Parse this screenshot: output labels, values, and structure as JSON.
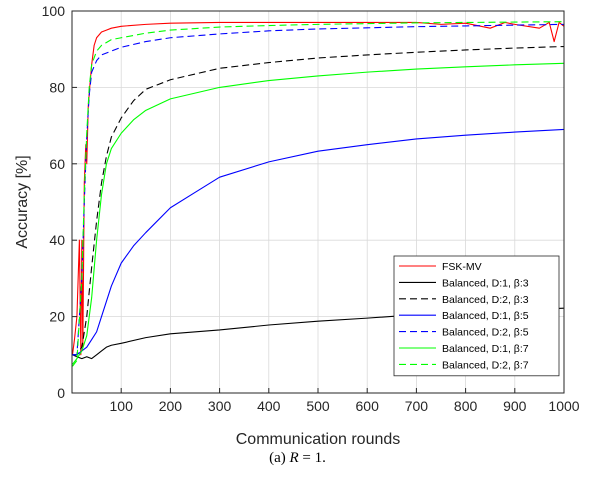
{
  "chart_data": {
    "type": "line",
    "xlabel": "Communication rounds",
    "ylabel": "Accuracy [%]",
    "xlim": [
      0,
      1000
    ],
    "ylim": [
      0,
      100
    ],
    "xticks": [
      100,
      200,
      300,
      400,
      500,
      600,
      700,
      800,
      900,
      1000
    ],
    "yticks": [
      0,
      20,
      40,
      60,
      80,
      100
    ],
    "grid": true,
    "legend_position": "bottom-right",
    "series": [
      {
        "name": "FSK-MV",
        "color": "#ff0000",
        "dash": "solid",
        "x": [
          1,
          5,
          10,
          15,
          18,
          20,
          22,
          25,
          28,
          30,
          33,
          36,
          40,
          45,
          50,
          60,
          70,
          80,
          100,
          150,
          200,
          300,
          400,
          500,
          600,
          700,
          750,
          800,
          850,
          880,
          900,
          950,
          970,
          980,
          990,
          1000
        ],
        "y": [
          10,
          14,
          20,
          40,
          10,
          40,
          12,
          55,
          65,
          60,
          75,
          80,
          86,
          91,
          93,
          94.5,
          95,
          95.5,
          96,
          96.5,
          96.8,
          97,
          97,
          97,
          97,
          97,
          96.5,
          96.8,
          95.5,
          97,
          96.5,
          95.5,
          97,
          92,
          97,
          96
        ]
      },
      {
        "name": "Balanced, D:1, β:3",
        "color": "#000000",
        "dash": "solid",
        "x": [
          1,
          10,
          20,
          30,
          40,
          50,
          60,
          70,
          80,
          100,
          150,
          200,
          300,
          400,
          500,
          600,
          700,
          800,
          900,
          1000
        ],
        "y": [
          10,
          9.5,
          9,
          9.5,
          9,
          10,
          11,
          12,
          12.5,
          13,
          14.5,
          15.5,
          16.5,
          17.8,
          18.8,
          19.6,
          20.5,
          21.1,
          21.7,
          22.2
        ]
      },
      {
        "name": "Balanced, D:2, β:3",
        "color": "#000000",
        "dash": "dashed",
        "x": [
          1,
          10,
          20,
          30,
          40,
          50,
          60,
          70,
          80,
          100,
          125,
          150,
          200,
          300,
          400,
          500,
          600,
          700,
          800,
          900,
          1000
        ],
        "y": [
          10,
          10,
          12,
          20,
          33,
          45,
          55,
          62,
          67,
          72,
          76.5,
          79.5,
          82,
          85,
          86.5,
          87.7,
          88.5,
          89.2,
          89.8,
          90.3,
          90.7
        ]
      },
      {
        "name": "Balanced, D:1, β:5",
        "color": "#0000ff",
        "dash": "solid",
        "x": [
          1,
          10,
          20,
          30,
          40,
          50,
          60,
          70,
          80,
          100,
          125,
          150,
          200,
          250,
          300,
          400,
          500,
          600,
          700,
          800,
          900,
          1000
        ],
        "y": [
          10,
          10,
          11,
          12,
          14,
          16,
          20,
          24,
          28,
          34,
          38.5,
          42,
          48.5,
          52.5,
          56.5,
          60.5,
          63.3,
          65,
          66.5,
          67.5,
          68.3,
          69
        ]
      },
      {
        "name": "Balanced, D:2, β:5",
        "color": "#0000ff",
        "dash": "dashed",
        "x": [
          1,
          10,
          20,
          25,
          30,
          35,
          40,
          50,
          60,
          80,
          100,
          150,
          200,
          300,
          400,
          500,
          600,
          700,
          800,
          900,
          1000
        ],
        "y": [
          10,
          10,
          30,
          50,
          67,
          78,
          84,
          87,
          88.5,
          89.5,
          90.5,
          92,
          93,
          94,
          94.8,
          95.3,
          95.6,
          95.9,
          96.1,
          96.3,
          96.5
        ]
      },
      {
        "name": "Balanced, D:1, β:7",
        "color": "#00ff00",
        "dash": "solid",
        "x": [
          1,
          10,
          20,
          30,
          40,
          50,
          60,
          70,
          80,
          100,
          125,
          150,
          200,
          300,
          400,
          500,
          600,
          700,
          800,
          900,
          1000
        ],
        "y": [
          7.5,
          9,
          11,
          15,
          25,
          40,
          52,
          60,
          64,
          68,
          71.5,
          74,
          77,
          80,
          81.8,
          83,
          84,
          84.8,
          85.4,
          85.9,
          86.3
        ]
      },
      {
        "name": "Balanced, D:2, β:7",
        "color": "#00ff00",
        "dash": "dashed",
        "x": [
          1,
          10,
          20,
          25,
          30,
          35,
          40,
          50,
          60,
          80,
          100,
          150,
          200,
          300,
          400,
          500,
          600,
          700,
          800,
          900,
          1000
        ],
        "y": [
          7,
          8.5,
          30,
          52,
          68,
          80,
          86,
          89.5,
          91,
          92.5,
          93,
          94.2,
          95,
          95.8,
          96.2,
          96.5,
          96.7,
          96.9,
          97,
          97.1,
          97.2
        ]
      }
    ]
  },
  "caption": {
    "prefix": "(a)",
    "variable": "R",
    "suffix": "= 1."
  }
}
